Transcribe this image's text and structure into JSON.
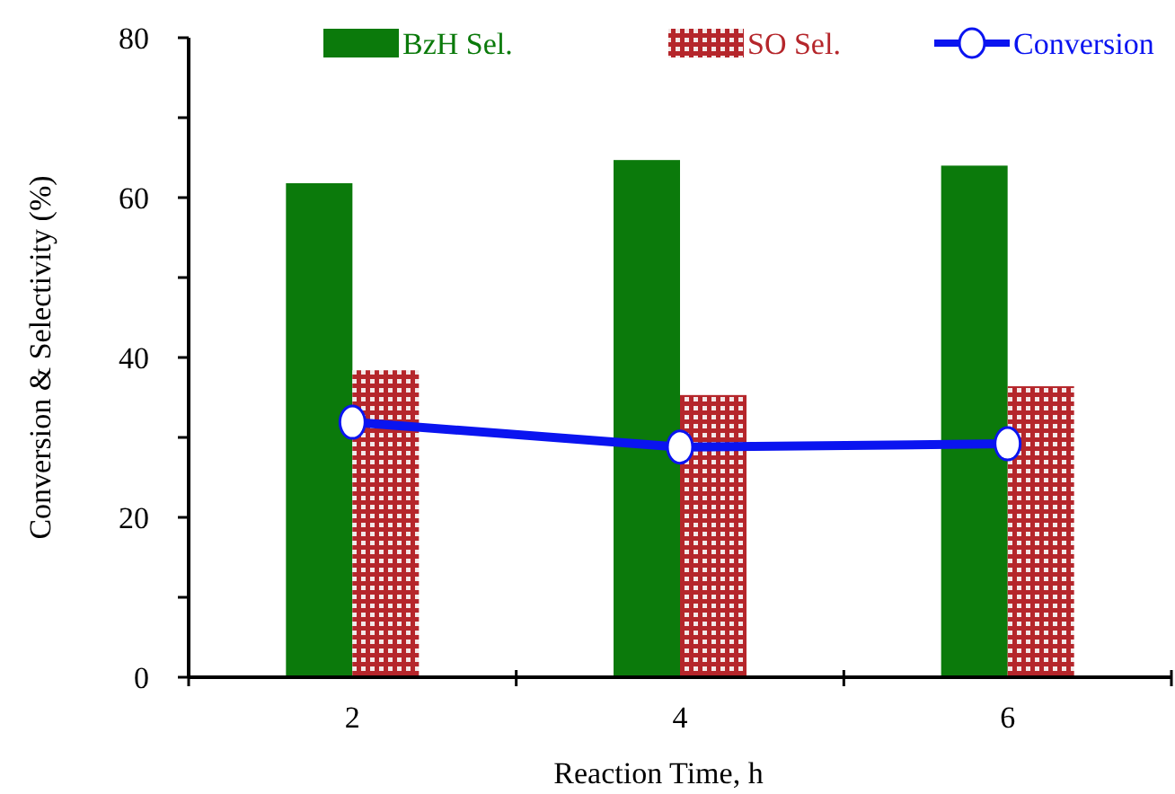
{
  "chart_data": {
    "type": "bar",
    "xlabel": "Reaction Time, h",
    "ylabel": "Conversion & Selectivity (%)",
    "categories": [
      "2",
      "4",
      "6"
    ],
    "series": [
      {
        "name": "BzH Sel.",
        "color": "#0b7a0b",
        "values": [
          61.8,
          64.7,
          64.0
        ]
      },
      {
        "name": "SO Sel.",
        "color": "#b5262b",
        "values": [
          38.4,
          35.3,
          36.4
        ]
      },
      {
        "name": "Conversion",
        "type": "line",
        "color": "#0a14f0",
        "values": [
          31.9,
          28.8,
          29.2
        ],
        "marker": "circle"
      }
    ],
    "ylim": [
      0,
      80
    ],
    "yticks": [
      0,
      {
        "value": 10,
        "label": null
      },
      20,
      {
        "value": 30,
        "label": null
      },
      40,
      {
        "value": 50,
        "label": null
      },
      60,
      {
        "value": 70,
        "label": null
      },
      80
    ],
    "grid": false,
    "legend": "top"
  }
}
